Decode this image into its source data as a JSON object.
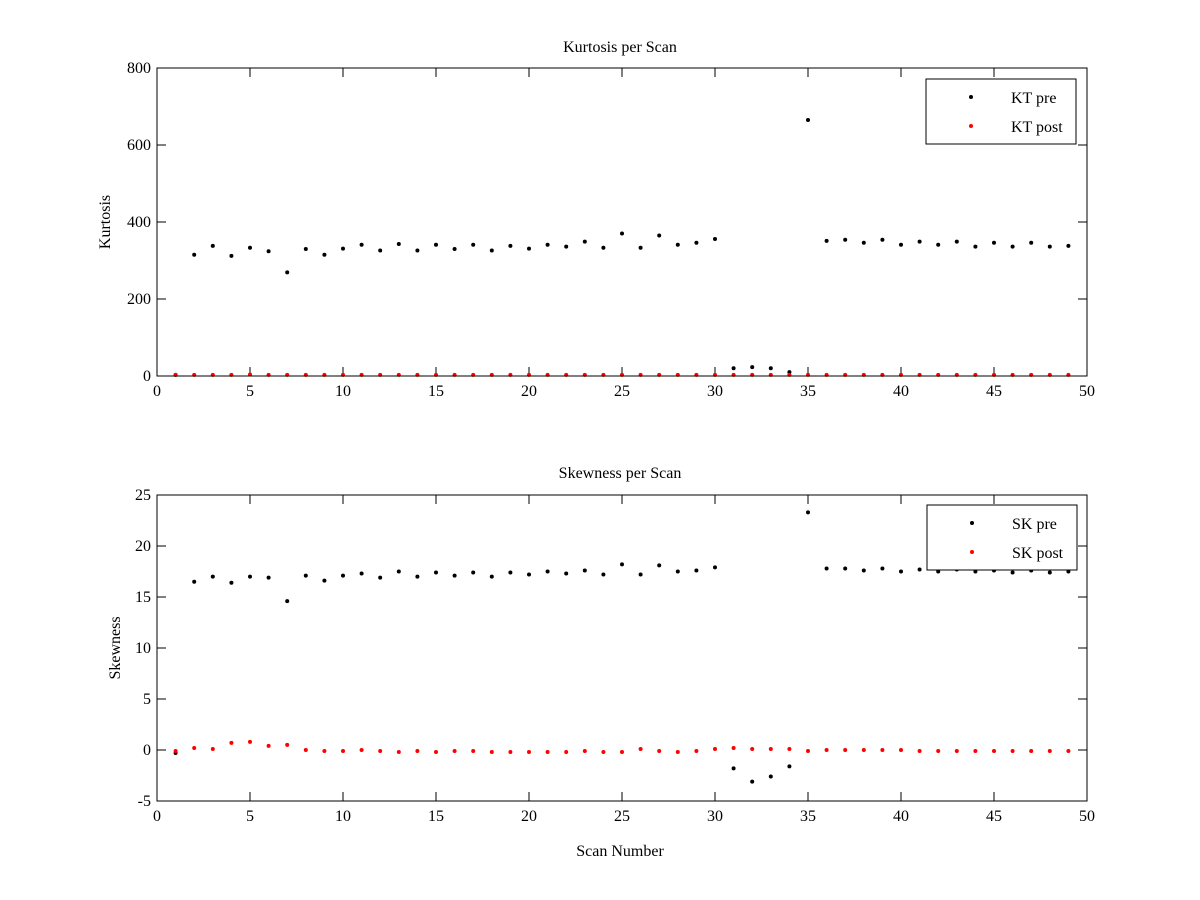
{
  "figure": {
    "background": "#ffffff"
  },
  "chart_data": [
    {
      "type": "scatter",
      "title": "Kurtosis per Scan",
      "xlabel": "",
      "ylabel": "Kurtosis",
      "xlim": [
        0,
        50
      ],
      "ylim": [
        0,
        800
      ],
      "xticks": [
        0,
        5,
        10,
        15,
        20,
        25,
        30,
        35,
        40,
        45,
        50
      ],
      "yticks": [
        0,
        200,
        400,
        600,
        800
      ],
      "legend_position": "top-right",
      "grid": false,
      "series": [
        {
          "name": "KT pre",
          "color": "#000000",
          "x": [
            1,
            2,
            3,
            4,
            5,
            6,
            7,
            8,
            9,
            10,
            11,
            12,
            13,
            14,
            15,
            16,
            17,
            18,
            19,
            20,
            21,
            22,
            23,
            24,
            25,
            26,
            27,
            28,
            29,
            30,
            31,
            32,
            33,
            34,
            35,
            36,
            37,
            38,
            39,
            40,
            41,
            42,
            43,
            44,
            45,
            46,
            47,
            48,
            49
          ],
          "y": [
            3,
            315,
            338,
            312,
            333,
            324,
            269,
            330,
            315,
            331,
            341,
            326,
            343,
            326,
            341,
            330,
            341,
            326,
            338,
            331,
            341,
            336,
            349,
            333,
            370,
            333,
            365,
            341,
            346,
            356,
            20,
            23,
            20,
            10,
            665,
            351,
            354,
            346,
            354,
            341,
            349,
            341,
            349,
            336,
            346,
            336,
            346,
            336,
            338
          ]
        },
        {
          "name": "KT post",
          "color": "#ff0000",
          "x": [
            1,
            2,
            3,
            4,
            5,
            6,
            7,
            8,
            9,
            10,
            11,
            12,
            13,
            14,
            15,
            16,
            17,
            18,
            19,
            20,
            21,
            22,
            23,
            24,
            25,
            26,
            27,
            28,
            29,
            30,
            31,
            32,
            33,
            34,
            35,
            36,
            37,
            38,
            39,
            40,
            41,
            42,
            43,
            44,
            45,
            46,
            47,
            48,
            49
          ],
          "y": [
            3,
            3,
            3,
            3,
            4,
            3,
            3,
            3,
            3,
            3,
            3,
            3,
            3,
            3,
            3,
            3,
            3,
            3,
            3,
            3,
            3,
            3,
            3,
            3,
            3,
            3,
            3,
            3,
            3,
            3,
            3,
            3,
            3,
            3,
            3,
            3,
            3,
            3,
            3,
            3,
            3,
            3,
            3,
            3,
            3,
            3,
            3,
            3,
            3
          ]
        }
      ]
    },
    {
      "type": "scatter",
      "title": "Skewness per Scan",
      "xlabel": "Scan Number",
      "ylabel": "Skewness",
      "xlim": [
        0,
        50
      ],
      "ylim": [
        -5,
        25
      ],
      "xticks": [
        0,
        5,
        10,
        15,
        20,
        25,
        30,
        35,
        40,
        45,
        50
      ],
      "yticks": [
        -5,
        0,
        5,
        10,
        15,
        20,
        25
      ],
      "legend_position": "top-right",
      "grid": false,
      "series": [
        {
          "name": "SK pre",
          "color": "#000000",
          "x": [
            1,
            2,
            3,
            4,
            5,
            6,
            7,
            8,
            9,
            10,
            11,
            12,
            13,
            14,
            15,
            16,
            17,
            18,
            19,
            20,
            21,
            22,
            23,
            24,
            25,
            26,
            27,
            28,
            29,
            30,
            31,
            32,
            33,
            34,
            35,
            36,
            37,
            38,
            39,
            40,
            41,
            42,
            43,
            44,
            45,
            46,
            47,
            48,
            49
          ],
          "y": [
            -0.3,
            16.5,
            17.0,
            16.4,
            17.0,
            16.9,
            14.6,
            17.1,
            16.6,
            17.1,
            17.3,
            16.9,
            17.5,
            17.0,
            17.4,
            17.1,
            17.4,
            17.0,
            17.4,
            17.2,
            17.5,
            17.3,
            17.6,
            17.2,
            18.2,
            17.2,
            18.1,
            17.5,
            17.6,
            17.9,
            -1.8,
            -3.1,
            -2.6,
            -1.6,
            23.3,
            17.8,
            17.8,
            17.6,
            17.8,
            17.5,
            17.7,
            17.5,
            17.7,
            17.5,
            17.6,
            17.4,
            17.6,
            17.4,
            17.5
          ]
        },
        {
          "name": "SK post",
          "color": "#ff0000",
          "x": [
            1,
            2,
            3,
            4,
            5,
            6,
            7,
            8,
            9,
            10,
            11,
            12,
            13,
            14,
            15,
            16,
            17,
            18,
            19,
            20,
            21,
            22,
            23,
            24,
            25,
            26,
            27,
            28,
            29,
            30,
            31,
            32,
            33,
            34,
            35,
            36,
            37,
            38,
            39,
            40,
            41,
            42,
            43,
            44,
            45,
            46,
            47,
            48,
            49
          ],
          "y": [
            -0.1,
            0.2,
            0.1,
            0.7,
            0.8,
            0.4,
            0.5,
            0.0,
            -0.1,
            -0.1,
            0.0,
            -0.1,
            -0.2,
            -0.1,
            -0.2,
            -0.1,
            -0.1,
            -0.2,
            -0.2,
            -0.2,
            -0.2,
            -0.2,
            -0.1,
            -0.2,
            -0.2,
            0.1,
            -0.1,
            -0.2,
            -0.1,
            0.1,
            0.2,
            0.1,
            0.1,
            0.1,
            -0.1,
            0.0,
            0.0,
            0.0,
            0.0,
            0.0,
            -0.1,
            -0.1,
            -0.1,
            -0.1,
            -0.1,
            -0.1,
            -0.1,
            -0.1,
            -0.1
          ]
        }
      ]
    }
  ]
}
